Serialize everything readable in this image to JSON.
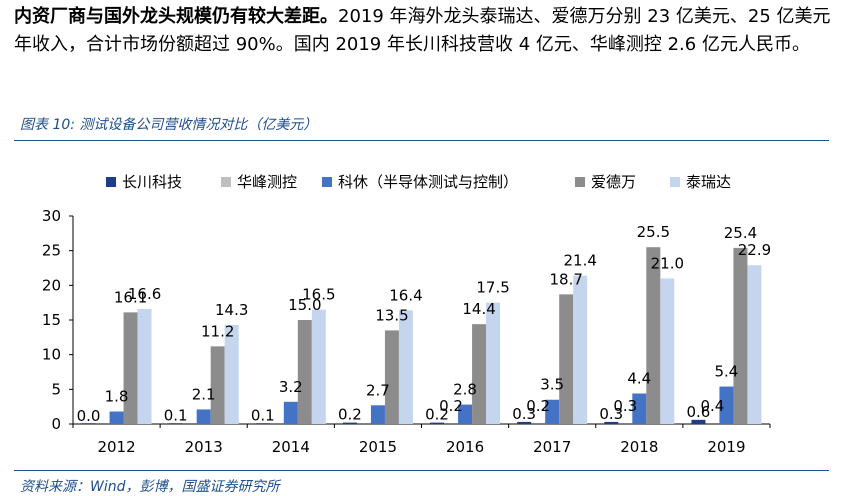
{
  "intro": {
    "bold_text": "内资厂商与国外龙头规模仍有较大差距。",
    "body_text": "2019 年海外龙头泰瑞达、爱德万分别 23 亿美元、25 亿美元年收入，合计市场份额超过 90%。国内 2019 年长川科技营收 4 亿元、华峰测控 2.6 亿元人民币。"
  },
  "figure": {
    "label": "图表 10:",
    "title": "测试设备公司营收情况对比（亿美元）"
  },
  "source": "资料来源：Wind，彭博，国盛证券研究所",
  "colors": {
    "accent": "#1f4e8c",
    "长川科技": "#1f3c88",
    "华峰测控": "#bfbfbf",
    "科休": "#4472c4",
    "爱德万": "#8c8c8c",
    "泰瑞达": "#c5d5ee"
  },
  "chart_data": {
    "type": "bar",
    "title": "测试设备公司营收情况对比（亿美元）",
    "categories": [
      "2012",
      "2013",
      "2014",
      "2015",
      "2016",
      "2017",
      "2018",
      "2019"
    ],
    "ylim": [
      0,
      30
    ],
    "yticks": [
      0,
      5,
      10,
      15,
      20,
      25,
      30
    ],
    "legend_position": "top",
    "series": [
      {
        "name": "长川科技",
        "values": [
          0.0,
          0.1,
          0.1,
          0.2,
          0.2,
          0.3,
          0.3,
          0.6
        ]
      },
      {
        "name": "华峰测控",
        "values": [
          null,
          null,
          null,
          null,
          null,
          null,
          null,
          null
        ]
      },
      {
        "name": "科休（半导体测试与控制）",
        "values": [
          1.8,
          2.1,
          3.2,
          2.7,
          2.8,
          3.5,
          4.4,
          5.4
        ]
      },
      {
        "name": "爱德万",
        "values": [
          16.1,
          11.2,
          15.0,
          13.5,
          14.4,
          18.7,
          25.5,
          25.4
        ]
      },
      {
        "name": "泰瑞达",
        "values": [
          16.6,
          14.3,
          16.5,
          16.4,
          17.5,
          21.4,
          21.0,
          22.9
        ]
      }
    ],
    "extra_labels": [
      {
        "category": "2016",
        "text": "0.2"
      },
      {
        "category": "2017",
        "text": "0.2"
      },
      {
        "category": "2018",
        "text": "0.3"
      },
      {
        "category": "2019",
        "text": "0.4"
      }
    ]
  }
}
